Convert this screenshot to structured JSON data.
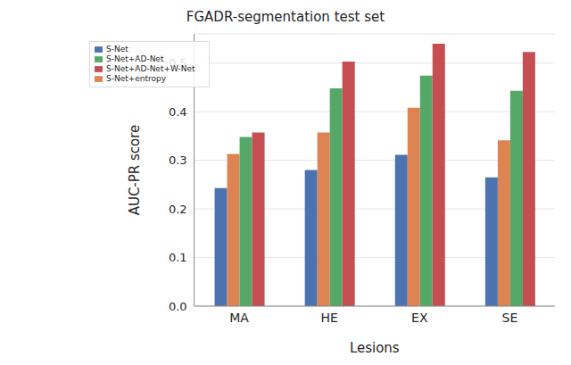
{
  "chart_data": {
    "type": "bar",
    "title": "FGADR-segmentation test set",
    "x_label": "Lesions",
    "y_label": "AUC-PR score",
    "categories": [
      "MA",
      "HE",
      "EX",
      "SE"
    ],
    "series": [
      {
        "name": "S-Net",
        "color": "#4c72b0",
        "values": [
          0.243,
          0.28,
          0.311,
          0.265
        ]
      },
      {
        "name": "S-Net+entropy",
        "color": "#dd8452",
        "values": [
          0.313,
          0.357,
          0.408,
          0.341
        ]
      },
      {
        "name": "S-Net+AD-Net",
        "color": "#55a868",
        "values": [
          0.348,
          0.448,
          0.474,
          0.443
        ]
      },
      {
        "name": "S-Net+AD-Net+W-Net",
        "color": "#c44e52",
        "values": [
          0.357,
          0.503,
          0.54,
          0.523
        ]
      }
    ],
    "ylim": [
      0,
      0.56
    ],
    "yticks": [
      {
        "value": 0,
        "label": "0.0"
      },
      0.1,
      0.2,
      0.3,
      0.4,
      0.5
    ],
    "grid": true,
    "legend": "upper left"
  }
}
